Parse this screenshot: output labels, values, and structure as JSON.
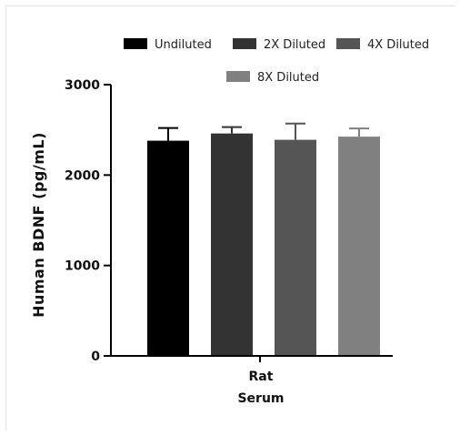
{
  "chart_data": {
    "type": "bar",
    "categories": [
      "Rat Serum"
    ],
    "x_label_lines": [
      "Rat",
      "Serum"
    ],
    "ylabel": "Human BDNF (pg/mL)",
    "ylim": [
      0,
      3000
    ],
    "yticks": [
      0,
      1000,
      2000,
      3000
    ],
    "legend_position": "top",
    "grid": false,
    "series": [
      {
        "name": "Undiluted",
        "values": [
          2380
        ],
        "error": [
          140
        ],
        "color": "#000000"
      },
      {
        "name": "2X Diluted",
        "values": [
          2460
        ],
        "error": [
          70
        ],
        "color": "#333333"
      },
      {
        "name": "4X Diluted",
        "values": [
          2390
        ],
        "error": [
          180
        ],
        "color": "#555555"
      },
      {
        "name": "8X Diluted",
        "values": [
          2425
        ],
        "error": [
          90
        ],
        "color": "#808080"
      }
    ]
  }
}
